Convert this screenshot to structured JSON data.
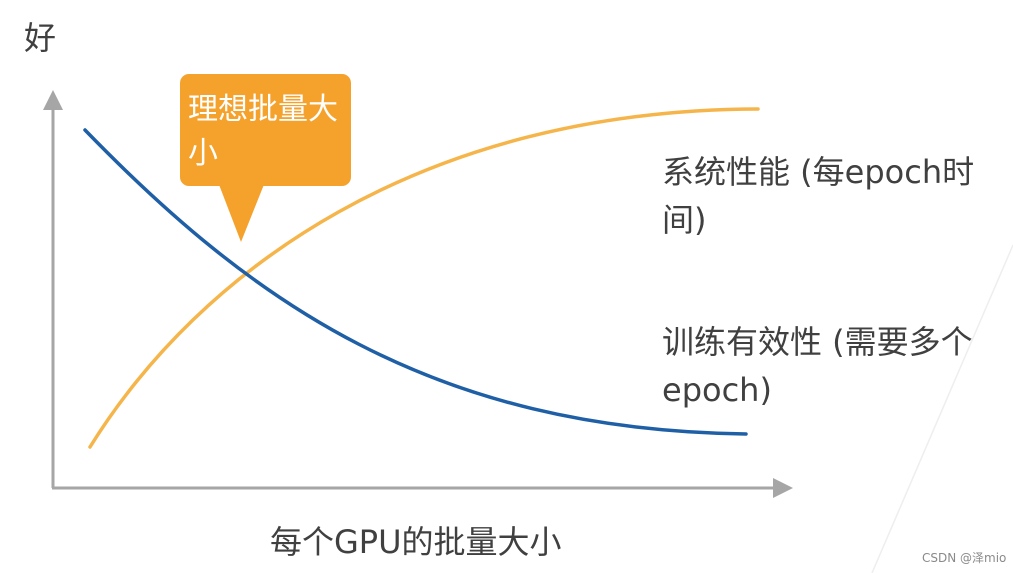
{
  "y_axis_label": "好",
  "x_axis_label": "每个GPU的批量大小",
  "callout": {
    "text": "理想批量大小",
    "color": "#F5A22D"
  },
  "curves": {
    "system_performance": {
      "label": "系统性能 (每epoch时间)",
      "color": "#F5B54A"
    },
    "training_efficiency": {
      "label": "训练有效性 (需要多个epoch)",
      "color": "#1F5FA6"
    }
  },
  "axis_color": "#A6A6A6",
  "watermark": "CSDN @泽mio"
}
